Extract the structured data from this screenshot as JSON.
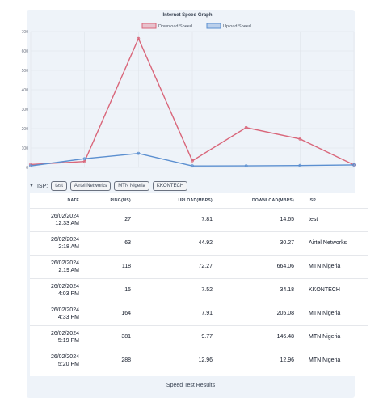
{
  "chart_data": {
    "type": "line",
    "title": "Internet Speed Graph",
    "ylim": [
      0,
      700
    ],
    "yticks": [
      0,
      100,
      200,
      300,
      400,
      500,
      600,
      700
    ],
    "x": [
      "26/02/2024 12:33 AM",
      "26/02/2024 2:18 AM",
      "26/02/2024 2:19 AM",
      "26/02/2024 4:03 PM",
      "26/02/2024 4:33 PM",
      "26/02/2024 5:19 PM",
      "26/02/2024 5:20 PM"
    ],
    "series": [
      {
        "name": "Download Speed",
        "color": "#d9667a",
        "values": [
          14.65,
          30.27,
          664.06,
          34.18,
          205.08,
          146.48,
          12.96
        ]
      },
      {
        "name": "Upload Speed",
        "color": "#5b8fd0",
        "values": [
          7.81,
          44.92,
          72.27,
          7.52,
          7.91,
          9.77,
          12.96
        ]
      }
    ],
    "legend": "top-center",
    "grid": true
  },
  "filter": {
    "label": "ISP:",
    "chips": [
      "test",
      "Airtel Networks",
      "MTN Nigeria",
      "KKONTECH"
    ]
  },
  "table": {
    "headers": [
      "DATE",
      "PING(MS)",
      "UPLOAD(MBPS)",
      "DOWNLOAD(MBPS)",
      "ISP"
    ],
    "rows": [
      {
        "date": "26/02/2024",
        "time": "12:33 AM",
        "ping": "27",
        "upload": "7.81",
        "download": "14.65",
        "isp": "test"
      },
      {
        "date": "26/02/2024",
        "time": "2:18 AM",
        "ping": "63",
        "upload": "44.92",
        "download": "30.27",
        "isp": "Airtel Networks"
      },
      {
        "date": "26/02/2024",
        "time": "2:19 AM",
        "ping": "118",
        "upload": "72.27",
        "download": "664.06",
        "isp": "MTN Nigeria"
      },
      {
        "date": "26/02/2024",
        "time": "4:03 PM",
        "ping": "15",
        "upload": "7.52",
        "download": "34.18",
        "isp": "KKONTECH"
      },
      {
        "date": "26/02/2024",
        "time": "4:33 PM",
        "ping": "164",
        "upload": "7.91",
        "download": "205.08",
        "isp": "MTN Nigeria"
      },
      {
        "date": "26/02/2024",
        "time": "5:19 PM",
        "ping": "381",
        "upload": "9.77",
        "download": "146.48",
        "isp": "MTN Nigeria"
      },
      {
        "date": "26/02/2024",
        "time": "5:20 PM",
        "ping": "288",
        "upload": "12.96",
        "download": "12.96",
        "isp": "MTN Nigeria"
      }
    ]
  },
  "footer": {
    "caption": "Speed Test Results"
  }
}
